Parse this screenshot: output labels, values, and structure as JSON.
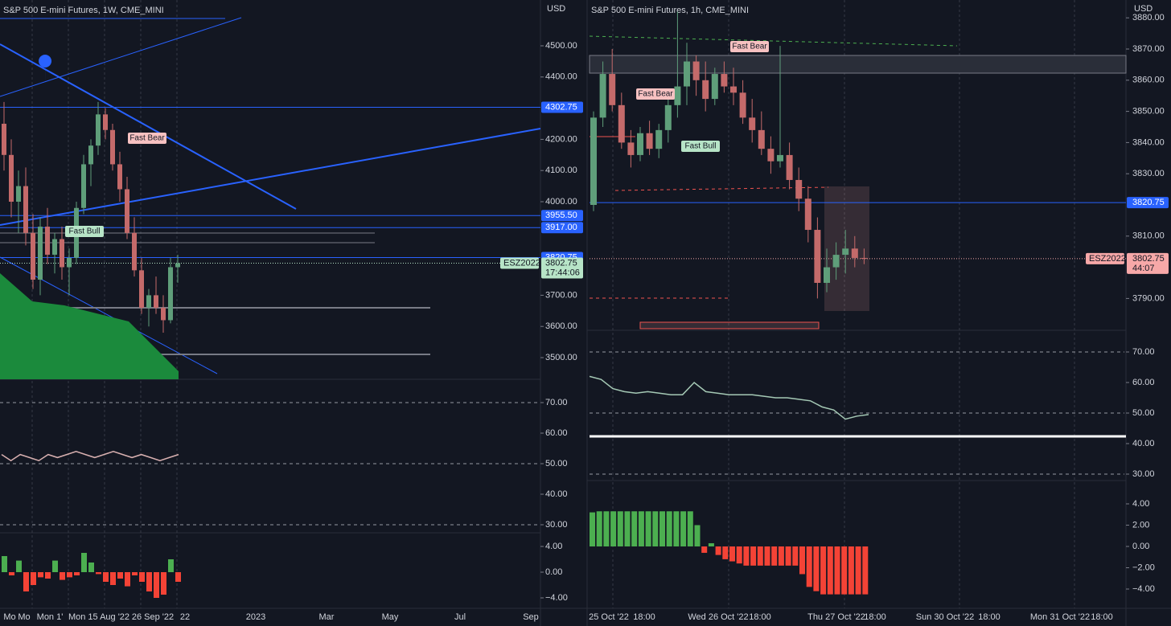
{
  "panels": [
    {
      "title": "S&P 500 E-mini Futures, 1W, CME_MINI",
      "currency": "USD",
      "price_ticks": [
        {
          "value": 4500,
          "label": "4500.00"
        },
        {
          "value": 4400,
          "label": "4400.00"
        },
        {
          "value": 4200,
          "label": "4200.00"
        },
        {
          "value": 4100,
          "label": "4100.00"
        },
        {
          "value": 4000,
          "label": "4000.00"
        },
        {
          "value": 3700,
          "label": "3700.00"
        },
        {
          "value": 3600,
          "label": "3600.00"
        },
        {
          "value": 3500,
          "label": "3500.00"
        }
      ],
      "price_badges": [
        {
          "value": 4302.75,
          "label": "4302.75"
        },
        {
          "value": 3955.5,
          "label": "3955.50"
        },
        {
          "value": 3917,
          "label": "3917.00"
        },
        {
          "value": 3820.75,
          "label": "3820.75"
        }
      ],
      "last_price": {
        "value": 3802.75,
        "label": "3802.75",
        "symbol": "ESZ2022",
        "countdown": "17:44:06"
      },
      "annotations": [
        "Fast Bear",
        "Fast Bull"
      ],
      "candles": [
        [
          4250,
          4320,
          4100,
          4150
        ],
        [
          4150,
          4200,
          3950,
          4000
        ],
        [
          4000,
          4100,
          3900,
          4050
        ],
        [
          4050,
          4110,
          3860,
          3900
        ],
        [
          3900,
          3960,
          3720,
          3750
        ],
        [
          3750,
          3950,
          3700,
          3920
        ],
        [
          3920,
          3980,
          3800,
          3830
        ],
        [
          3830,
          3900,
          3770,
          3880
        ],
        [
          3880,
          3920,
          3750,
          3790
        ],
        [
          3790,
          3850,
          3700,
          3820
        ],
        [
          3820,
          4000,
          3800,
          3980
        ],
        [
          3980,
          4150,
          3960,
          4120
        ],
        [
          4120,
          4200,
          4050,
          4180
        ],
        [
          4180,
          4320,
          4150,
          4280
        ],
        [
          4280,
          4300,
          4200,
          4230
        ],
        [
          4230,
          4250,
          4100,
          4120
        ],
        [
          4120,
          4160,
          4000,
          4040
        ],
        [
          4040,
          4080,
          3880,
          3900
        ],
        [
          3900,
          3950,
          3760,
          3780
        ],
        [
          3780,
          3820,
          3640,
          3660
        ],
        [
          3660,
          3720,
          3600,
          3700
        ],
        [
          3700,
          3760,
          3640,
          3660
        ],
        [
          3660,
          3700,
          3580,
          3620
        ],
        [
          3620,
          3820,
          3610,
          3790
        ],
        [
          3790,
          3830,
          3740,
          3802.75
        ]
      ],
      "oscillator": {
        "ticks": [
          {
            "value": 70,
            "label": "70.00"
          },
          {
            "value": 60,
            "label": "60.00"
          },
          {
            "value": 50,
            "label": "50.00"
          },
          {
            "value": 40,
            "label": "40.00"
          },
          {
            "value": 30,
            "label": "30.00"
          }
        ],
        "values": [
          53,
          51,
          53,
          52,
          51,
          53,
          52,
          53,
          54,
          53,
          52,
          53,
          54,
          53,
          52,
          53,
          52,
          51,
          52,
          53
        ]
      },
      "histogram": {
        "ticks": [
          {
            "value": 4,
            "label": "4.00"
          },
          {
            "value": 0,
            "label": "0.00"
          },
          {
            "value": -4,
            "label": "−4.00"
          }
        ],
        "values": [
          2.5,
          -0.5,
          1.8,
          -3,
          -2,
          -0.8,
          -1,
          1.8,
          -1.2,
          -0.8,
          -0.5,
          3,
          1.5,
          -0.3,
          -1.5,
          -2,
          -1,
          -2.2,
          -0.5,
          -1.5,
          -3,
          -4,
          -3.5,
          2,
          -1.5
        ]
      },
      "time_labels": [
        "Mo",
        "Mo",
        "Mon 1'",
        "Mon 15 Aug '22",
        "26 Sep '22",
        "22",
        "2023",
        "Mar",
        "May",
        "Jul",
        "Sep"
      ]
    },
    {
      "title": "S&P 500 E-mini Futures, 1h, CME_MINI",
      "currency": "USD",
      "price_ticks": [
        {
          "value": 3880,
          "label": "3880.00"
        },
        {
          "value": 3870,
          "label": "3870.00"
        },
        {
          "value": 3860,
          "label": "3860.00"
        },
        {
          "value": 3850,
          "label": "3850.00"
        },
        {
          "value": 3840,
          "label": "3840.00"
        },
        {
          "value": 3830,
          "label": "3830.00"
        },
        {
          "value": 3810,
          "label": "3810.00"
        },
        {
          "value": 3790,
          "label": "3790.00"
        }
      ],
      "price_badges": [
        {
          "value": 3820.75,
          "label": "3820.75"
        }
      ],
      "last_price": {
        "value": 3802.75,
        "label": "3802.75",
        "symbol": "ESZ2022",
        "countdown": "44:07"
      },
      "annotations": [
        "Fast Bear",
        "Fast Bear",
        "Fast Bull"
      ],
      "candles": [
        [
          3820,
          3850,
          3818,
          3848
        ],
        [
          3848,
          3866,
          3845,
          3862
        ],
        [
          3862,
          3870,
          3850,
          3852
        ],
        [
          3852,
          3856,
          3838,
          3840
        ],
        [
          3840,
          3844,
          3832,
          3836
        ],
        [
          3836,
          3845,
          3834,
          3843
        ],
        [
          3843,
          3847,
          3836,
          3838
        ],
        [
          3838,
          3846,
          3835,
          3844
        ],
        [
          3844,
          3856,
          3840,
          3852
        ],
        [
          3852,
          3882,
          3848,
          3858
        ],
        [
          3858,
          3872,
          3852,
          3866
        ],
        [
          3866,
          3868,
          3855,
          3860
        ],
        [
          3860,
          3866,
          3850,
          3854
        ],
        [
          3854,
          3864,
          3852,
          3862
        ],
        [
          3862,
          3866,
          3856,
          3858
        ],
        [
          3858,
          3864,
          3852,
          3856
        ],
        [
          3856,
          3860,
          3846,
          3848
        ],
        [
          3848,
          3854,
          3840,
          3844
        ],
        [
          3844,
          3850,
          3836,
          3838
        ],
        [
          3838,
          3842,
          3830,
          3834
        ],
        [
          3834,
          3871,
          3832,
          3836
        ],
        [
          3836,
          3840,
          3825,
          3828
        ],
        [
          3828,
          3832,
          3818,
          3822
        ],
        [
          3822,
          3826,
          3808,
          3812
        ],
        [
          3812,
          3816,
          3790,
          3795
        ],
        [
          3795,
          3806,
          3792,
          3800
        ],
        [
          3800,
          3808,
          3796,
          3804
        ],
        [
          3804,
          3812,
          3798,
          3806
        ],
        [
          3806,
          3810,
          3800,
          3803
        ],
        [
          3803,
          3806,
          3801,
          3802.75
        ]
      ],
      "oscillator": {
        "ticks": [
          {
            "value": 70,
            "label": "70.00"
          },
          {
            "value": 60,
            "label": "60.00"
          },
          {
            "value": 50,
            "label": "50.00"
          },
          {
            "value": 40,
            "label": "40.00"
          },
          {
            "value": 30,
            "label": "30.00"
          }
        ],
        "values": [
          62,
          61,
          58,
          57,
          56.5,
          57,
          56.5,
          56,
          56,
          60,
          57,
          56.5,
          56,
          56,
          56,
          55.5,
          55,
          55,
          54.5,
          54,
          52,
          51,
          48,
          49,
          49.5
        ]
      },
      "histogram": {
        "ticks": [
          {
            "value": 4,
            "label": "4.00"
          },
          {
            "value": 2,
            "label": "2.00"
          },
          {
            "value": 0,
            "label": "0.00"
          },
          {
            "value": -2,
            "label": "−2.00"
          },
          {
            "value": -4,
            "label": "−4.00"
          }
        ],
        "values": [
          3.2,
          3.3,
          3.3,
          3.3,
          3.3,
          3.3,
          3.3,
          3.3,
          3.3,
          3.3,
          3.3,
          3.3,
          3.3,
          3.3,
          3.3,
          2.0,
          -0.6,
          0.3,
          -0.8,
          -1.2,
          -1.4,
          -1.6,
          -1.8,
          -1.8,
          -1.8,
          -1.8,
          -1.8,
          -1.8,
          -1.8,
          -1.8,
          -2.6,
          -3.8,
          -4.2,
          -4.5,
          -4.5,
          -4.5,
          -4.5,
          -4.5,
          -4.5,
          -4.5
        ]
      },
      "time_labels": [
        "25 Oct '22",
        "18:00",
        "Wed 26 Oct '22",
        "18:00",
        "Thu 27 Oct '22",
        "18:00",
        "Sun 30 Oct '22",
        "18:00",
        "Mon 31 Oct '22",
        "18:00"
      ]
    }
  ]
}
